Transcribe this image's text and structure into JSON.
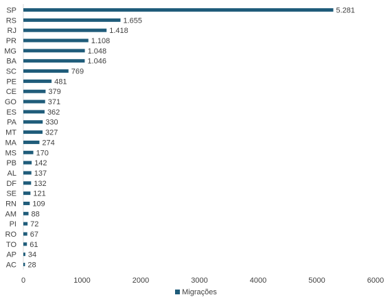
{
  "chart_data": {
    "type": "bar",
    "orientation": "horizontal",
    "categories": [
      "SP",
      "RS",
      "RJ",
      "PR",
      "MG",
      "BA",
      "SC",
      "PE",
      "CE",
      "GO",
      "ES",
      "PA",
      "MT",
      "MA",
      "MS",
      "PB",
      "AL",
      "DF",
      "SE",
      "RN",
      "AM",
      "PI",
      "RO",
      "TO",
      "AP",
      "AC"
    ],
    "series": [
      {
        "name": "Migrações",
        "values": [
          5281,
          1655,
          1418,
          1108,
          1048,
          1046,
          769,
          481,
          379,
          371,
          362,
          330,
          327,
          274,
          170,
          142,
          137,
          132,
          121,
          109,
          88,
          72,
          67,
          61,
          34,
          28
        ],
        "value_labels": [
          "5.281",
          "1.655",
          "1.418",
          "1.108",
          "1.048",
          "1.046",
          "769",
          "481",
          "379",
          "371",
          "362",
          "330",
          "327",
          "274",
          "170",
          "142",
          "137",
          "132",
          "121",
          "109",
          "88",
          "72",
          "67",
          "61",
          "34",
          "28"
        ],
        "color": "#1f5c7a"
      }
    ],
    "x_ticks": [
      "0",
      "1000",
      "2000",
      "3000",
      "4000",
      "5000",
      "6000"
    ],
    "xlim": [
      0,
      6000
    ],
    "grid": false,
    "legend_position": "bottom"
  }
}
